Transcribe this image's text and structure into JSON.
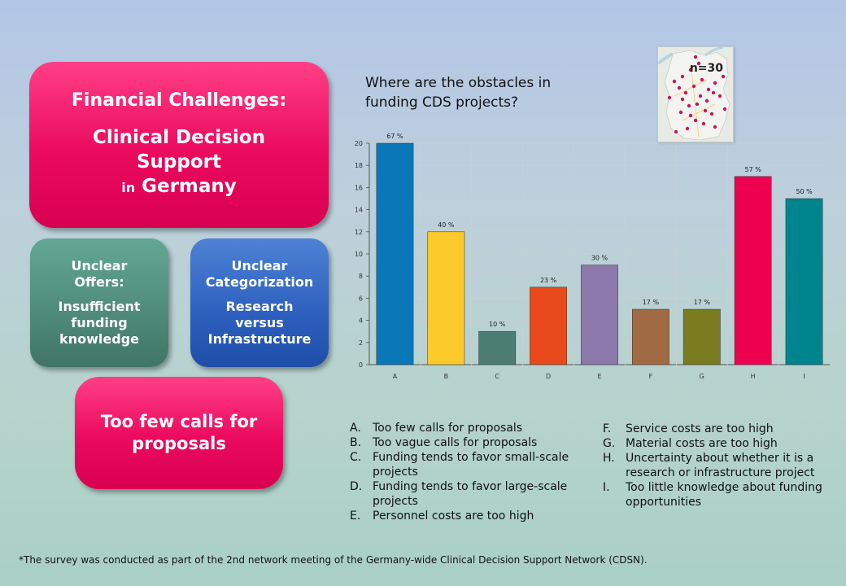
{
  "main_box": {
    "line1": "Financial Challenges:",
    "line2": "Clinical Decision",
    "line3": "Support",
    "line4_small": "in",
    "line4_big": "Germany"
  },
  "offers_box": {
    "line1": "Unclear",
    "line2": "Offers:",
    "line3": "Insufficient",
    "line4": "funding",
    "line5": "knowledge"
  },
  "categorization_box": {
    "line1": "Unclear",
    "line2": "Categorization",
    "line3": "Research",
    "line4": "versus",
    "line5": "Infrastructure"
  },
  "calls_box": {
    "line1": "Too few calls for",
    "line2": "proposals"
  },
  "question": {
    "line1": "Where are the obstacles in",
    "line2": "funding CDS projects?"
  },
  "map": {
    "label": "n=30"
  },
  "chart_data": {
    "type": "bar",
    "categories": [
      "A",
      "B",
      "C",
      "D",
      "E",
      "F",
      "G",
      "H",
      "I"
    ],
    "values": [
      20,
      12,
      3,
      7,
      9,
      5,
      5,
      17,
      15
    ],
    "data_labels": [
      "67 %",
      "40 %",
      "10 %",
      "23 %",
      "30 %",
      "17 %",
      "17 %",
      "57 %",
      "50 %"
    ],
    "colors": [
      "#0a77b8",
      "#fcc92b",
      "#4b7d72",
      "#e84a1c",
      "#8d78ac",
      "#a06a45",
      "#7b7c20",
      "#ee0050",
      "#00858e"
    ],
    "yticks": [
      0,
      2,
      4,
      6,
      8,
      10,
      12,
      14,
      16,
      18,
      20
    ],
    "ylim": [
      0,
      20
    ],
    "grid": true
  },
  "legend_left": [
    {
      "letter": "A.",
      "text": "Too few calls for proposals"
    },
    {
      "letter": "B.",
      "text": "Too vague calls for proposals"
    },
    {
      "letter": "C.",
      "text": "Funding tends to favor small-scale projects"
    },
    {
      "letter": "D.",
      "text": "Funding tends to favor large-scale projects"
    },
    {
      "letter": "E.",
      "text": "Personnel costs are too high"
    }
  ],
  "legend_right": [
    {
      "letter": "F.",
      "text": "Service costs are too high"
    },
    {
      "letter": "G.",
      "text": "Material costs are too high"
    },
    {
      "letter": "H.",
      "text": "Uncertainty about whether it is a research or infrastructure  project"
    },
    {
      "letter": "I.",
      "text": "Too little knowledge about funding opportunities"
    }
  ],
  "footnote": "*The survey was conducted as part of the 2nd network meeting of the Germany-wide Clinical  Decision Support Network (CDSN)."
}
